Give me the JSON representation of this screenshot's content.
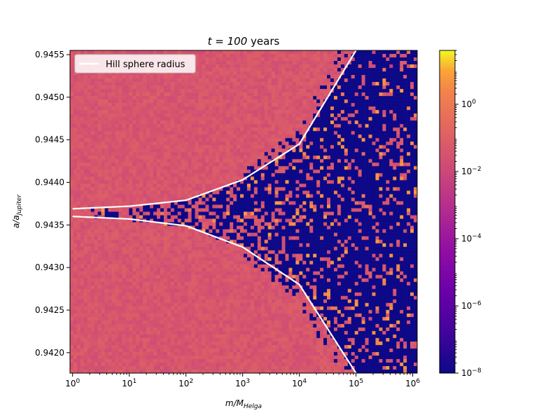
{
  "chart_data": {
    "type": "heatmap",
    "title": {
      "prefix": "t = 100",
      "suffix": " years"
    },
    "xlabel": {
      "base": "m/M",
      "sub": "Helga"
    },
    "ylabel": {
      "base": "a/a",
      "sub": "Jupiter"
    },
    "x_scale": "log",
    "xlim": [
      0.9,
      1200000
    ],
    "ylim": [
      0.94176,
      0.94555
    ],
    "x_ticks": [
      {
        "value": 1,
        "base": "10",
        "exp": "0"
      },
      {
        "value": 10,
        "base": "10",
        "exp": "1"
      },
      {
        "value": 100,
        "base": "10",
        "exp": "2"
      },
      {
        "value": 1000,
        "base": "10",
        "exp": "3"
      },
      {
        "value": 10000,
        "base": "10",
        "exp": "4"
      },
      {
        "value": 100000,
        "base": "10",
        "exp": "5"
      },
      {
        "value": 1000000,
        "base": "10",
        "exp": "6"
      }
    ],
    "y_ticks": [
      "0.9420",
      "0.9425",
      "0.9430",
      "0.9435",
      "0.9440",
      "0.9445",
      "0.9450",
      "0.9455"
    ],
    "colorbar": {
      "scale": "log",
      "range": [
        1e-08,
        40
      ],
      "colormap": "plasma",
      "ticks": [
        {
          "value": 1e-08,
          "base": "10",
          "exp": "−8"
        },
        {
          "value": 1e-06,
          "base": "10",
          "exp": "−6"
        },
        {
          "value": 0.0001,
          "base": "10",
          "exp": "−4"
        },
        {
          "value": 0.01,
          "base": "10",
          "exp": "−2"
        },
        {
          "value": 1,
          "base": "10",
          "exp": "0"
        }
      ]
    },
    "heatmap": {
      "background_level": 0.04,
      "low_level": 1e-08,
      "high_level": 8
    },
    "series": [
      {
        "name": "Hill sphere radius",
        "color": "#ffffff",
        "center_a": 0.94363,
        "points": [
          {
            "x": 1,
            "y_upper": 0.94369,
            "y_lower": 0.9436
          },
          {
            "x": 10,
            "y_upper": 0.94372,
            "y_lower": 0.94357
          },
          {
            "x": 100,
            "y_upper": 0.94379,
            "y_lower": 0.94349
          },
          {
            "x": 1000,
            "y_upper": 0.94403,
            "y_lower": 0.94324
          },
          {
            "x": 10000,
            "y_upper": 0.94445,
            "y_lower": 0.9428
          },
          {
            "x": 100000,
            "y_upper": 0.94555,
            "y_lower": 0.94176
          }
        ]
      }
    ],
    "legend": {
      "placement": "upper-left"
    }
  }
}
